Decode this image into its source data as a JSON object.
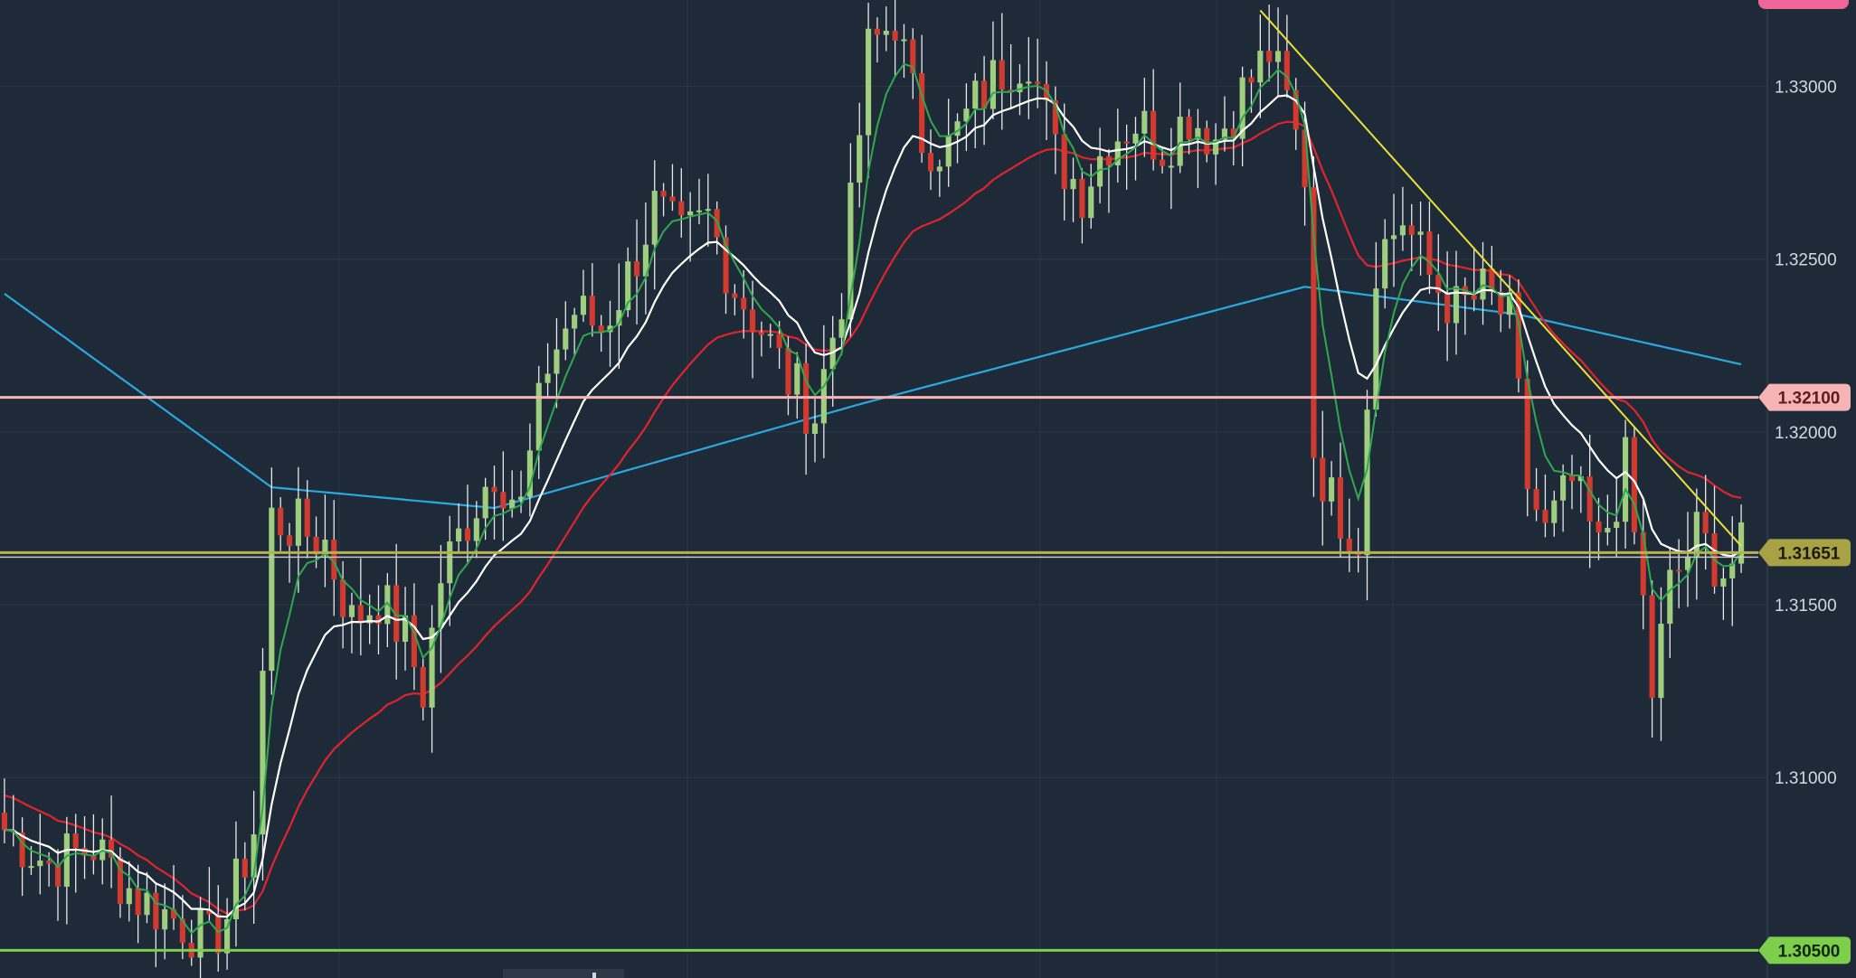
{
  "chart_data": {
    "type": "candlestick",
    "title": "",
    "xlabel": "",
    "ylabel": "",
    "ylim": [
      1.3042,
      1.3325
    ],
    "y_ticks": [
      "1.33000",
      "1.32500",
      "1.32000",
      "1.31500",
      "1.31000"
    ],
    "grid": true,
    "colors": {
      "background": "#1e2a38",
      "grid": "#2b3746",
      "up_candle": "#9fcf7e",
      "down_candle": "#d13a2e",
      "wick": "#e8e8e8",
      "ma_fast": "#2fa84f",
      "ma_mid": "#ffffff",
      "ma_slow": "#e0242e",
      "ma_long": "#2aa8e0",
      "trendline": "#e9e23a"
    },
    "trend_points": [
      {
        "x": 0,
        "y": 1.3085
      },
      {
        "x": 5,
        "y": 1.3075
      },
      {
        "x": 10,
        "y": 1.308
      },
      {
        "x": 15,
        "y": 1.3065
      },
      {
        "x": 20,
        "y": 1.3058
      },
      {
        "x": 23,
        "y": 1.3052
      },
      {
        "x": 25,
        "y": 1.306
      },
      {
        "x": 28,
        "y": 1.3085
      },
      {
        "x": 30,
        "y": 1.3175
      },
      {
        "x": 33,
        "y": 1.3172
      },
      {
        "x": 36,
        "y": 1.3168
      },
      {
        "x": 39,
        "y": 1.3145
      },
      {
        "x": 42,
        "y": 1.3152
      },
      {
        "x": 45,
        "y": 1.314
      },
      {
        "x": 47,
        "y": 1.3125
      },
      {
        "x": 49,
        "y": 1.3158
      },
      {
        "x": 52,
        "y": 1.3175
      },
      {
        "x": 55,
        "y": 1.319
      },
      {
        "x": 58,
        "y": 1.3178
      },
      {
        "x": 61,
        "y": 1.322
      },
      {
        "x": 64,
        "y": 1.3235
      },
      {
        "x": 67,
        "y": 1.323
      },
      {
        "x": 70,
        "y": 1.3245
      },
      {
        "x": 73,
        "y": 1.3265
      },
      {
        "x": 76,
        "y": 1.3255
      },
      {
        "x": 79,
        "y": 1.3262
      },
      {
        "x": 82,
        "y": 1.3242
      },
      {
        "x": 85,
        "y": 1.323
      },
      {
        "x": 88,
        "y": 1.3215
      },
      {
        "x": 91,
        "y": 1.3205
      },
      {
        "x": 94,
        "y": 1.324
      },
      {
        "x": 97,
        "y": 1.331
      },
      {
        "x": 100,
        "y": 1.332
      },
      {
        "x": 103,
        "y": 1.3285
      },
      {
        "x": 106,
        "y": 1.3282
      },
      {
        "x": 109,
        "y": 1.3295
      },
      {
        "x": 112,
        "y": 1.3305
      },
      {
        "x": 115,
        "y": 1.331
      },
      {
        "x": 118,
        "y": 1.328
      },
      {
        "x": 121,
        "y": 1.327
      },
      {
        "x": 124,
        "y": 1.3285
      },
      {
        "x": 127,
        "y": 1.329
      },
      {
        "x": 130,
        "y": 1.3283
      },
      {
        "x": 133,
        "y": 1.3292
      },
      {
        "x": 136,
        "y": 1.3285
      },
      {
        "x": 139,
        "y": 1.3298
      },
      {
        "x": 142,
        "y": 1.331
      },
      {
        "x": 144,
        "y": 1.3295
      },
      {
        "x": 146,
        "y": 1.3275
      },
      {
        "x": 147,
        "y": 1.3195
      },
      {
        "x": 149,
        "y": 1.318
      },
      {
        "x": 152,
        "y": 1.317
      },
      {
        "x": 154,
        "y": 1.325
      },
      {
        "x": 157,
        "y": 1.3262
      },
      {
        "x": 160,
        "y": 1.3245
      },
      {
        "x": 163,
        "y": 1.3235
      },
      {
        "x": 166,
        "y": 1.324
      },
      {
        "x": 169,
        "y": 1.3232
      },
      {
        "x": 171,
        "y": 1.3185
      },
      {
        "x": 173,
        "y": 1.317
      },
      {
        "x": 176,
        "y": 1.3185
      },
      {
        "x": 179,
        "y": 1.3165
      },
      {
        "x": 182,
        "y": 1.319
      },
      {
        "x": 184,
        "y": 1.315
      },
      {
        "x": 185,
        "y": 1.3125
      },
      {
        "x": 187,
        "y": 1.3155
      },
      {
        "x": 190,
        "y": 1.317
      },
      {
        "x": 193,
        "y": 1.316
      },
      {
        "x": 195,
        "y": 1.3165
      }
    ],
    "hlines": [
      {
        "price": 1.321,
        "color": "#f7b4b4",
        "label": "1.32100",
        "label_bg": "#f7b4b4",
        "label_color": "#5a1e1e"
      },
      {
        "price": 1.31651,
        "color": "#b6b04e",
        "label": "1.31651",
        "label_bg": "#a9a245",
        "label_color": "#1a1a10"
      },
      {
        "price": 1.305,
        "color": "#7dce4a",
        "label": "1.30500",
        "label_bg": "#7dce4a",
        "label_color": "#10260a"
      }
    ],
    "trendline": [
      {
        "x": 141,
        "y": 1.3322
      },
      {
        "x": 195,
        "y": 1.3167
      }
    ],
    "top_tag_bg": "#f0669a"
  }
}
